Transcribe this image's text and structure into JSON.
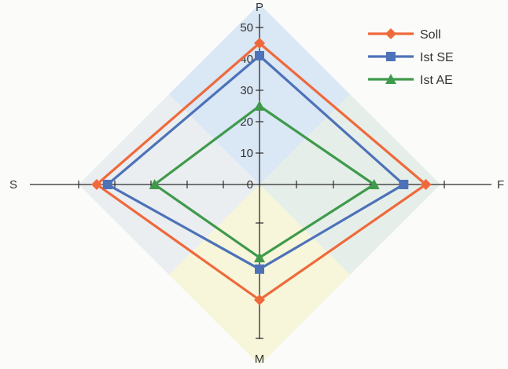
{
  "chart_data": {
    "type": "radar",
    "axes": [
      "P",
      "F",
      "M",
      "S"
    ],
    "range": [
      0,
      50
    ],
    "tick_step": 10,
    "tick_labels": [
      "0",
      "10",
      "20",
      "30",
      "40",
      "50"
    ],
    "series": [
      {
        "name": "Soll",
        "values": [
          45,
          45,
          30,
          45
        ],
        "color": "#ee6a3c",
        "marker": "diamond"
      },
      {
        "name": "Ist SE",
        "values": [
          41,
          39,
          22,
          42
        ],
        "color": "#4d72b8",
        "marker": "square"
      },
      {
        "name": "Ist AE",
        "values": [
          25,
          31,
          19,
          29
        ],
        "color": "#3f9a4c",
        "marker": "triangle"
      }
    ],
    "legend_position": "top-right",
    "quadrant_colors": [
      "#cfe0f3",
      "#dfeae3",
      "#f6f4cf",
      "#e6e9ee"
    ]
  }
}
